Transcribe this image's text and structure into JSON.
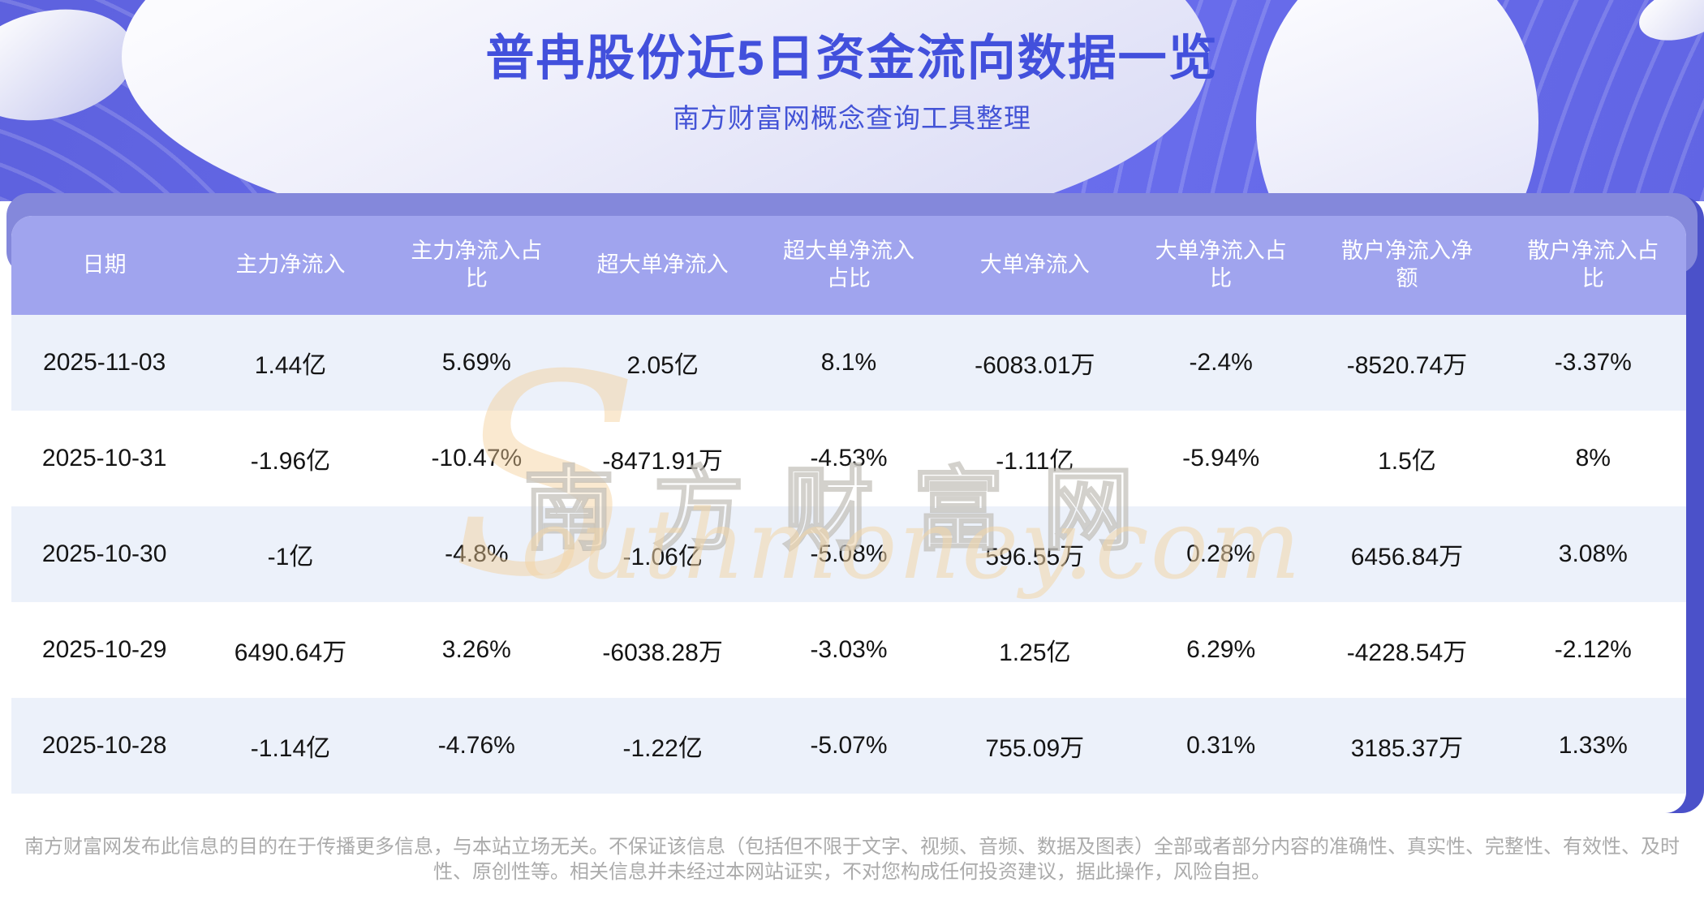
{
  "banner": {
    "title": "普冉股份近5日资金流向数据一览",
    "subtitle": "南方财富网概念查询工具整理"
  },
  "chart_data": {
    "type": "table",
    "title": "普冉股份近5日资金流向数据一览",
    "columns": [
      "日期",
      "主力净流入",
      "主力净流入占比",
      "超大单净流入",
      "超大单净流入占比",
      "大单净流入",
      "大单净流入占比",
      "散户净流入净额",
      "散户净流入占比"
    ],
    "rows": [
      [
        "2025-11-03",
        "1.44亿",
        "5.69%",
        "2.05亿",
        "8.1%",
        "-6083.01万",
        "-2.4%",
        "-8520.74万",
        "-3.37%"
      ],
      [
        "2025-10-31",
        "-1.96亿",
        "-10.47%",
        "-8471.91万",
        "-4.53%",
        "-1.11亿",
        "-5.94%",
        "1.5亿",
        "8%"
      ],
      [
        "2025-10-30",
        "-1亿",
        "-4.8%",
        "-1.06亿",
        "-5.08%",
        "596.55万",
        "0.28%",
        "6456.84万",
        "3.08%"
      ],
      [
        "2025-10-29",
        "6490.64万",
        "3.26%",
        "-6038.28万",
        "-3.03%",
        "1.25亿",
        "6.29%",
        "-4228.54万",
        "-2.12%"
      ],
      [
        "2025-10-28",
        "-1.14亿",
        "-4.76%",
        "-1.22亿",
        "-5.07%",
        "755.09万",
        "0.31%",
        "3185.37万",
        "1.33%"
      ]
    ]
  },
  "watermark": {
    "cn": "南方财富网",
    "en_initial": "S",
    "en_rest": "outhmoney.com"
  },
  "footer": {
    "disclaimer": "南方财富网发布此信息的目的在于传播更多信息，与本站立场无关。不保证该信息（包括但不限于文字、视频、音频、数据及图表）全部或者部分内容的准确性、真实性、完整性、有效性、及时性、原创性等。相关信息并未经过本网站证实，不对您构成任何投资建议，据此操作，风险自担。"
  },
  "colors": {
    "banner_purple": "#6b6fee",
    "title_blue": "#4250dc",
    "header_row": "#a0a4ee",
    "alt_row": "#ecf1fa",
    "band": "#8488db",
    "backing": "#4b51c9",
    "watermark_orange": "#f5cf96"
  }
}
